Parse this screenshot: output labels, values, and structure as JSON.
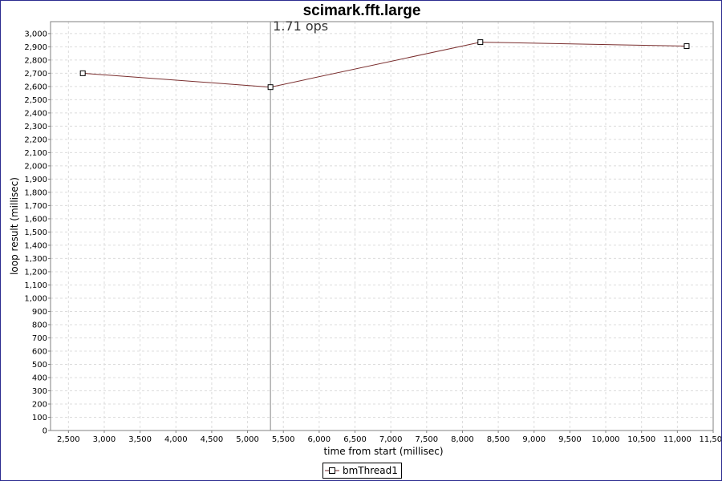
{
  "chart_data": {
    "type": "line",
    "title": "scimark.fft.large",
    "xlabel": "time from start (millisec)",
    "ylabel": "loop result (millisec)",
    "xlim": [
      2250,
      11500
    ],
    "ylim": [
      0,
      3090
    ],
    "x_ticks": [
      2500,
      3000,
      3500,
      4000,
      4500,
      5000,
      5500,
      6000,
      6500,
      7000,
      7500,
      8000,
      8500,
      9000,
      9500,
      10000,
      10500,
      11000,
      11500
    ],
    "y_ticks": [
      0,
      100,
      200,
      300,
      400,
      500,
      600,
      700,
      800,
      900,
      1000,
      1100,
      1200,
      1300,
      1400,
      1500,
      1600,
      1700,
      1800,
      1900,
      2000,
      2100,
      2200,
      2300,
      2400,
      2500,
      2600,
      2700,
      2800,
      2900,
      3000
    ],
    "x_tick_labels": [
      "2,500",
      "3,000",
      "3,500",
      "4,000",
      "4,500",
      "5,000",
      "5,500",
      "6,000",
      "6,500",
      "7,000",
      "7,500",
      "8,000",
      "8,500",
      "9,000",
      "9,500",
      "10,000",
      "10,500",
      "11,000",
      "11,500"
    ],
    "y_tick_labels": [
      "0",
      "100",
      "200",
      "300",
      "400",
      "500",
      "600",
      "700",
      "800",
      "900",
      "1,000",
      "1,100",
      "1,200",
      "1,300",
      "1,400",
      "1,500",
      "1,600",
      "1,700",
      "1,800",
      "1,900",
      "2,000",
      "2,100",
      "2,200",
      "2,300",
      "2,400",
      "2,500",
      "2,600",
      "2,700",
      "2,800",
      "2,900",
      "3,000"
    ],
    "grid": true,
    "legend_position": "bottom",
    "series": [
      {
        "name": "bmThread1",
        "color": "#7a2e2e",
        "marker": "square",
        "x": [
          2700,
          5320,
          8250,
          11130
        ],
        "y": [
          2700,
          2595,
          2935,
          2905
        ]
      }
    ],
    "annotations": [
      {
        "type": "vertical-line",
        "x": 5320,
        "label": "1.71 ops",
        "color": "#888888"
      }
    ]
  }
}
